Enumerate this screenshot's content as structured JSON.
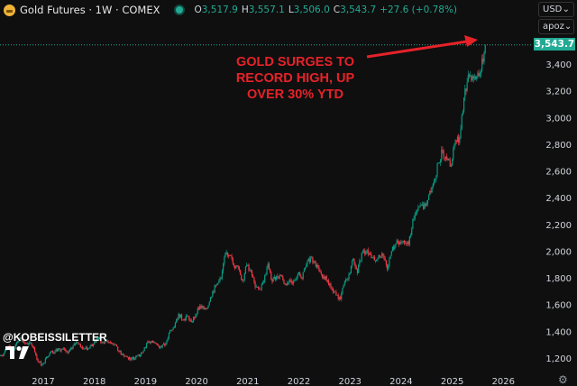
{
  "header": {
    "title": "Gold Futures · 1W · COMEX",
    "open_label": "O",
    "open": "3,517.9",
    "high_label": "H",
    "high": "3,557.1",
    "low_label": "L",
    "low": "3,506.0",
    "close_label": "C",
    "close": "3,543.7",
    "change": "+27.6 (+0.78%)"
  },
  "controls": {
    "currency": "USD",
    "unit": "apoz"
  },
  "annotation": {
    "lines": [
      "GOLD SURGES TO",
      "RECORD HIGH, UP",
      "OVER 30% YTD"
    ]
  },
  "watermark": "@KOBEISSILETTER",
  "colors": {
    "up": "#089981",
    "down": "#f23645",
    "price_tag": "#22ab94",
    "annotation": "#e62229",
    "background": "#0f0f0f"
  },
  "chart_data": {
    "type": "candlestick",
    "interval": "1W (shown as monthly approximation)",
    "last_price": 3543.7,
    "y_ticks": [
      1200,
      1400,
      1600,
      1800,
      2000,
      2200,
      2400,
      2600,
      2800,
      3000,
      3200,
      3400
    ],
    "y_tick_labels": [
      "1,200",
      "1,400",
      "1,600",
      "1,800",
      "2,000",
      "2,200",
      "2,400",
      "2,600",
      "2,800",
      "3,000",
      "3,200",
      "3,400"
    ],
    "x_ticks": [
      "2017",
      "2018",
      "2019",
      "2020",
      "2021",
      "2022",
      "2023",
      "2024",
      "2025",
      "2026"
    ],
    "ylim": [
      1080,
      3700
    ],
    "start": "2016-03",
    "closes": [
      1235,
      1290,
      1215,
      1320,
      1350,
      1310,
      1315,
      1275,
      1175,
      1150,
      1210,
      1250,
      1250,
      1265,
      1270,
      1240,
      1270,
      1320,
      1280,
      1270,
      1275,
      1305,
      1345,
      1320,
      1325,
      1315,
      1300,
      1250,
      1225,
      1205,
      1195,
      1215,
      1225,
      1280,
      1320,
      1315,
      1295,
      1285,
      1310,
      1410,
      1430,
      1530,
      1485,
      1515,
      1470,
      1520,
      1590,
      1565,
      1595,
      1700,
      1750,
      1800,
      1990,
      1970,
      1890,
      1880,
      1780,
      1895,
      1850,
      1730,
      1715,
      1770,
      1905,
      1770,
      1815,
      1815,
      1755,
      1785,
      1775,
      1830,
      1795,
      1900,
      1950,
      1910,
      1850,
      1810,
      1780,
      1720,
      1670,
      1640,
      1770,
      1825,
      1945,
      1835,
      1985,
      2000,
      1980,
      1930,
      1970,
      1965,
      1865,
      2000,
      2055,
      2070,
      2060,
      2050,
      2240,
      2300,
      2345,
      2340,
      2450,
      2530,
      2660,
      2750,
      2680,
      2640,
      2830,
      2850,
      3150,
      3320,
      3310,
      3310,
      3350,
      3543.7
    ]
  }
}
